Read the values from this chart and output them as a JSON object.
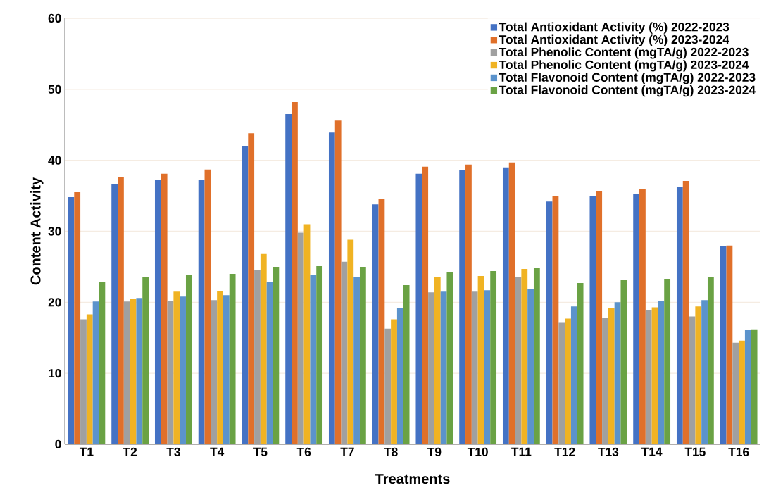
{
  "chart_data": {
    "type": "bar",
    "xlabel": "Treatments",
    "ylabel": "Content Activity",
    "categories": [
      "T1",
      "T2",
      "T3",
      "T4",
      "T5",
      "T6",
      "T7",
      "T8",
      "T9",
      "T10",
      "T11",
      "T12",
      "T13",
      "T14",
      "T15",
      "T16"
    ],
    "ylim": [
      0,
      60
    ],
    "yticks": [
      0,
      10,
      20,
      30,
      40,
      50,
      60
    ],
    "grid": "y",
    "legend": "top right",
    "series": [
      {
        "name": "Total Antioxidant Activity (%) 2022-2023",
        "color": "#4472c4",
        "values": [
          34.8,
          36.7,
          37.2,
          37.3,
          42.0,
          46.5,
          43.9,
          33.8,
          38.1,
          38.6,
          39.0,
          34.2,
          34.9,
          35.2,
          36.2,
          27.9
        ]
      },
      {
        "name": "Total Antioxidant Activity (%) 2023-2024",
        "color": "#e0702a",
        "values": [
          35.5,
          37.6,
          38.1,
          38.7,
          43.8,
          48.2,
          45.6,
          34.6,
          39.1,
          39.4,
          39.7,
          35.0,
          35.7,
          36.0,
          37.1,
          28.0
        ]
      },
      {
        "name": "Total Phenolic Content (mgTA/g) 2022-2023",
        "color": "#a0a0a0",
        "values": [
          17.6,
          20.1,
          20.2,
          20.3,
          24.6,
          29.8,
          25.7,
          16.3,
          21.4,
          21.5,
          23.6,
          17.1,
          17.8,
          18.9,
          18.0,
          14.3
        ]
      },
      {
        "name": "Total Phenolic Content (mgTA/g) 2023-2024",
        "color": "#f0b323",
        "values": [
          18.3,
          20.5,
          21.5,
          21.6,
          26.8,
          31.0,
          28.8,
          17.6,
          23.6,
          23.7,
          24.7,
          17.7,
          19.2,
          19.3,
          19.4,
          14.6
        ]
      },
      {
        "name": "Total Flavonoid Content (mgTA/g) 2022-2023",
        "color": "#5b93cc",
        "values": [
          20.1,
          20.6,
          20.8,
          21.0,
          22.8,
          23.9,
          23.6,
          19.2,
          21.5,
          21.7,
          21.9,
          19.4,
          20.0,
          20.2,
          20.3,
          16.1
        ]
      },
      {
        "name": "Total Flavonoid Content (mgTA/g) 2023-2024",
        "color": "#6aa244",
        "values": [
          22.9,
          23.6,
          23.8,
          24.0,
          25.0,
          25.1,
          25.0,
          22.4,
          24.2,
          24.4,
          24.8,
          22.7,
          23.1,
          23.3,
          23.5,
          16.2
        ]
      }
    ]
  }
}
